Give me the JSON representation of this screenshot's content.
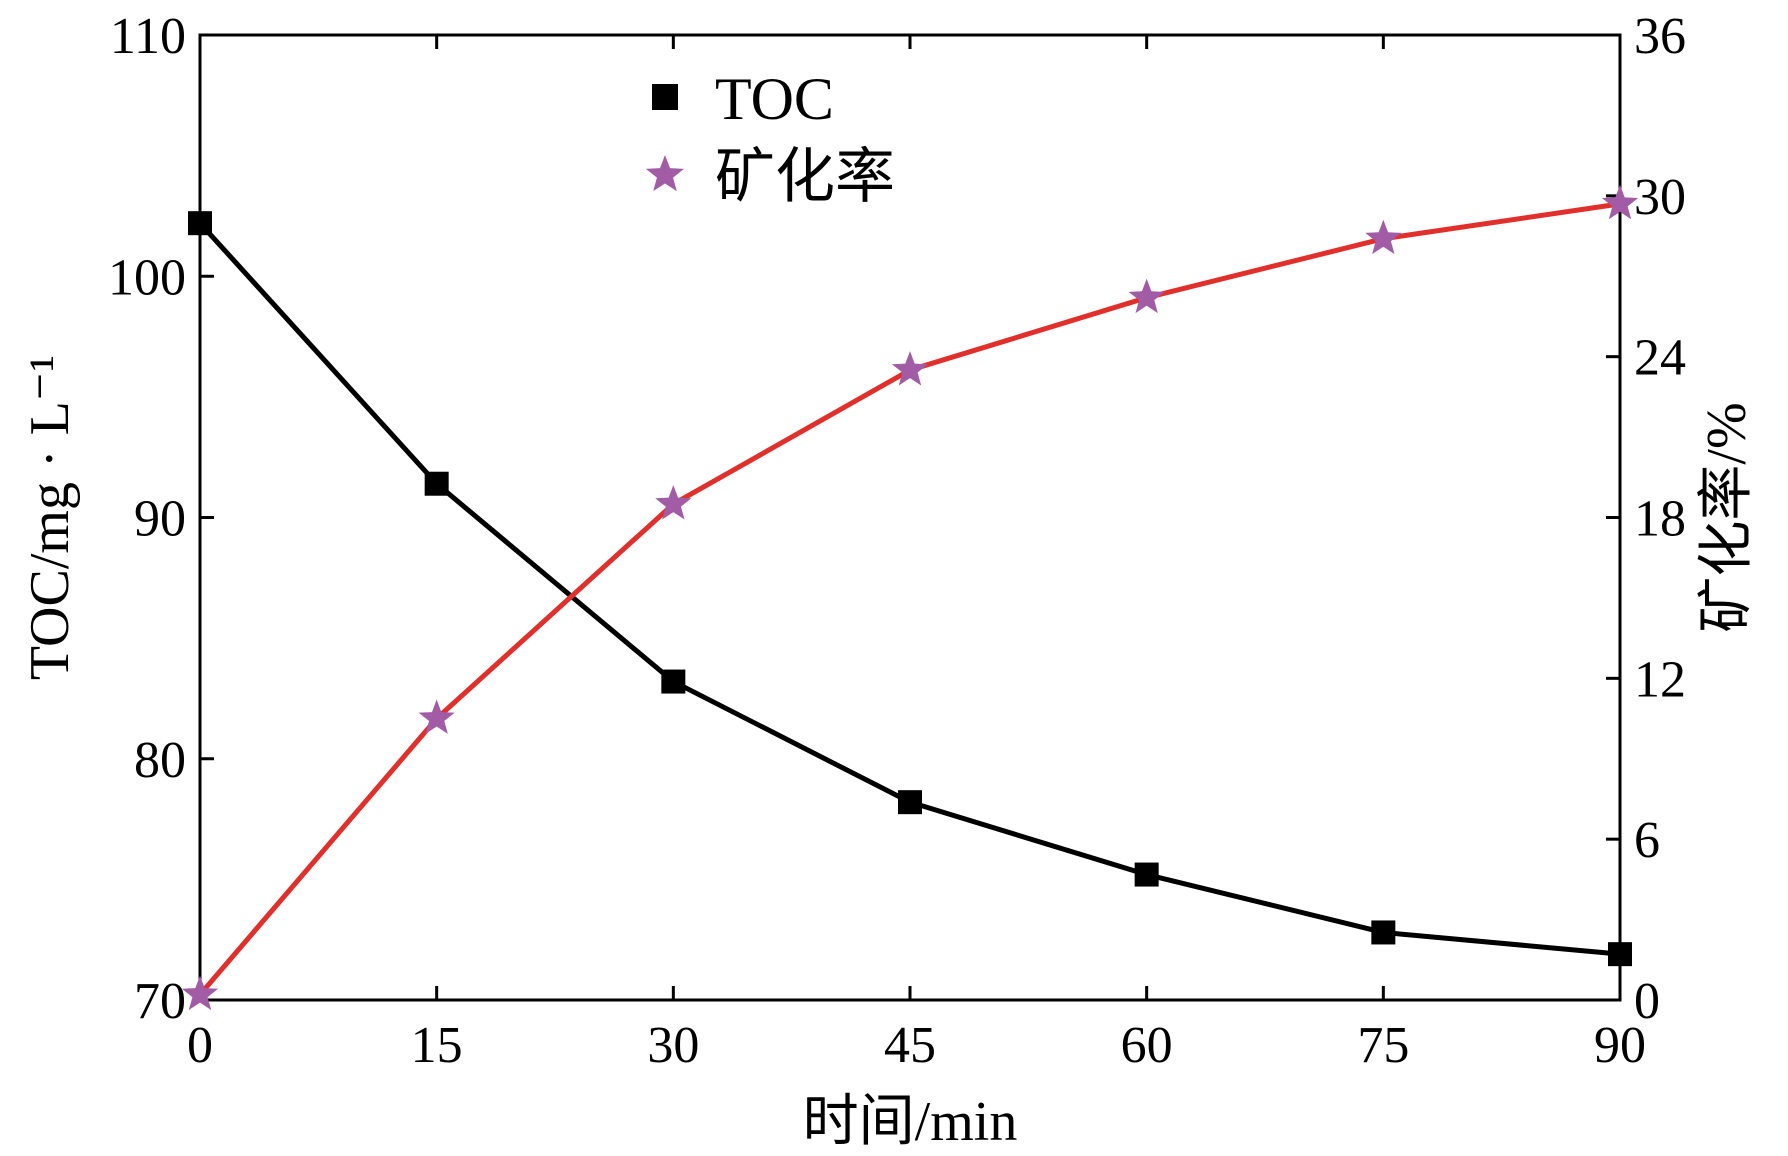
{
  "chart_data": {
    "type": "line",
    "title": "",
    "x": [
      0,
      15,
      30,
      45,
      60,
      75,
      90
    ],
    "xlabel": "时间/min",
    "xlim": [
      0,
      90
    ],
    "xticks": [
      "0",
      "15",
      "30",
      "45",
      "60",
      "75",
      "90"
    ],
    "ylabel_left": "TOC/mg · L⁻¹",
    "ylim_left": [
      70,
      110
    ],
    "yticks_left": [
      "70",
      "80",
      "90",
      "100",
      "110"
    ],
    "ylabel_right": "矿化率/%",
    "ylim_right": [
      0,
      36
    ],
    "yticks_right": [
      "0",
      "6",
      "12",
      "18",
      "24",
      "30",
      "36"
    ],
    "grid": false,
    "legend_position": "top-center",
    "series": [
      {
        "name": "TOC",
        "axis": "left",
        "marker": "square",
        "color": "#000000",
        "line_color": "#000000",
        "values": [
          102.2,
          91.4,
          83.2,
          78.2,
          75.2,
          72.8,
          71.9
        ]
      },
      {
        "name": "矿化率",
        "axis": "right",
        "marker": "star",
        "color": "#a25ca6",
        "line_color": "#e1302b",
        "values": [
          0.2,
          10.5,
          18.5,
          23.5,
          26.2,
          28.4,
          29.7
        ]
      }
    ]
  }
}
